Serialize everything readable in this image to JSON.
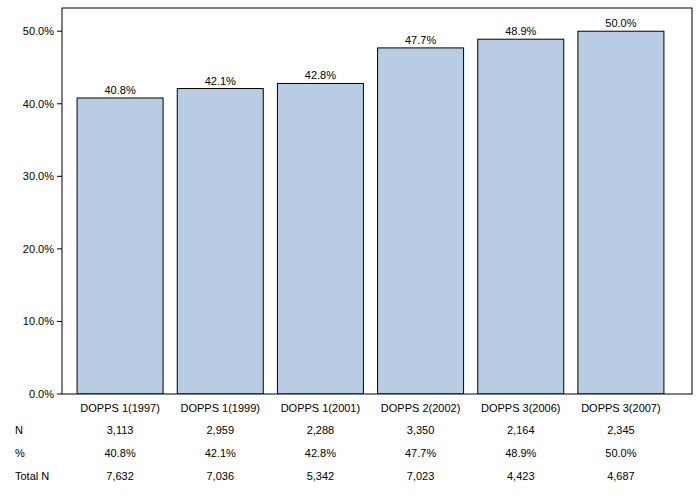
{
  "chart_data": {
    "type": "bar",
    "categories": [
      "DOPPS 1(1997)",
      "DOPPS 1(1999)",
      "DOPPS 1(2001)",
      "DOPPS 2(2002)",
      "DOPPS 3(2006)",
      "DOPPS 3(2007)"
    ],
    "values": [
      40.8,
      42.1,
      42.8,
      47.7,
      48.9,
      50.0
    ],
    "value_labels": [
      "40.8%",
      "42.1%",
      "42.8%",
      "47.7%",
      "48.9%",
      "50.0%"
    ],
    "data_labels": true,
    "color": "#b8cce4",
    "ylim": [
      0,
      53.2
    ],
    "yticks": [
      {
        "value": 0,
        "label": "0.0%"
      },
      {
        "value": 10,
        "label": "10.0%"
      },
      {
        "value": 20,
        "label": "20.0%"
      },
      {
        "value": 30,
        "label": "30.0%"
      },
      {
        "value": 40,
        "label": "40.0%"
      },
      {
        "value": 50,
        "label": "50.0%"
      }
    ],
    "grid": false
  },
  "table": {
    "rows": [
      {
        "label": "N",
        "cells": [
          "3,113",
          "2,959",
          "2,288",
          "3,350",
          "2,164",
          "2,345"
        ]
      },
      {
        "label": "%",
        "cells": [
          "40.8%",
          "42.1%",
          "42.8%",
          "47.7%",
          "48.9%",
          "50.0%"
        ]
      },
      {
        "label": "Total N",
        "cells": [
          "7,632",
          "7,036",
          "5,342",
          "7,023",
          "4,423",
          "4,687"
        ]
      }
    ]
  }
}
